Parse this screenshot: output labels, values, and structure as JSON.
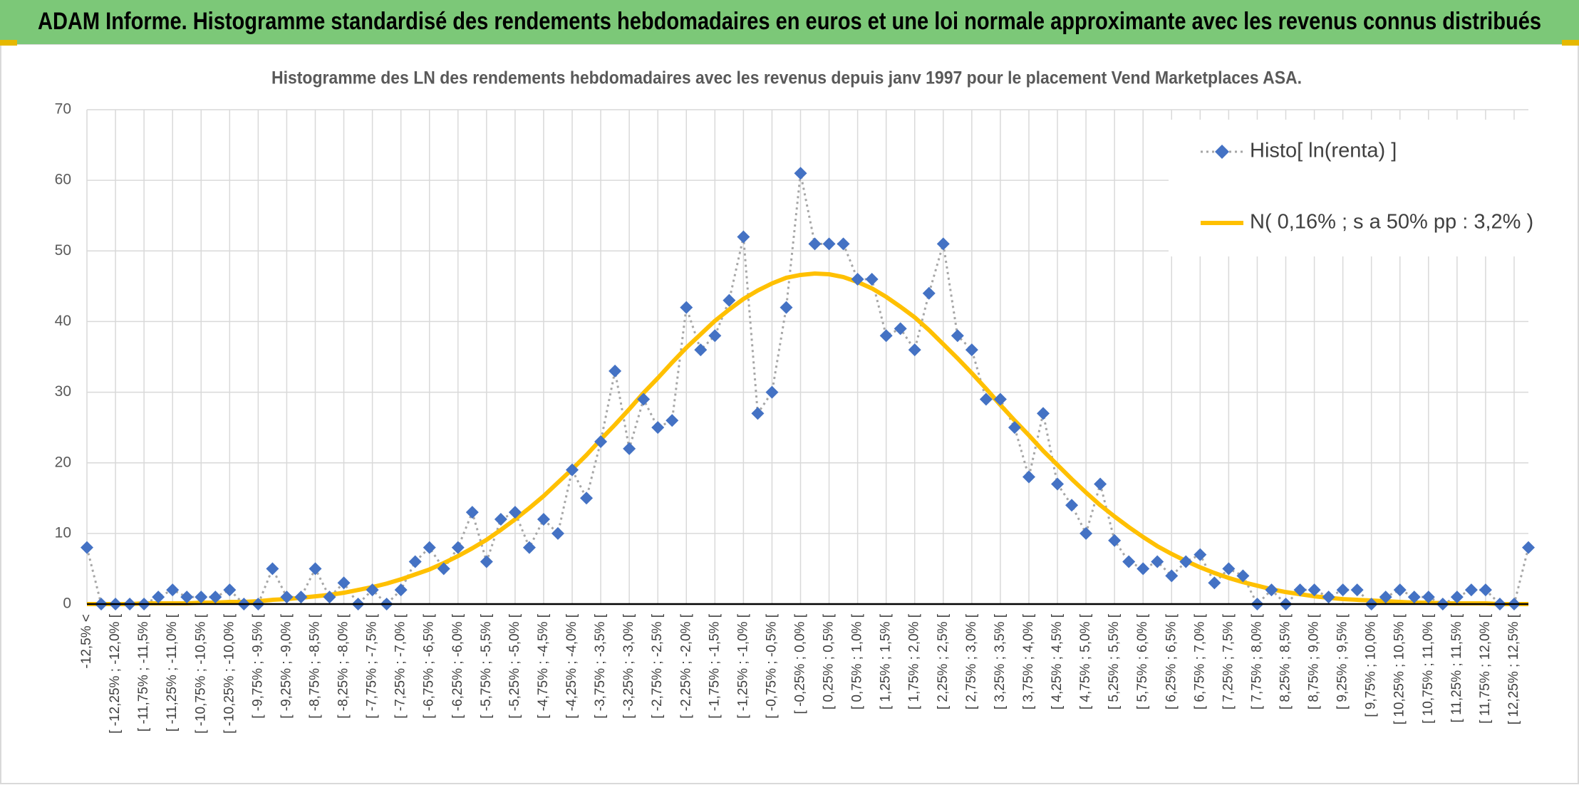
{
  "chart_data": {
    "type": "line",
    "title": "ADAM Informe. Histogramme standardisé des rendements hebdomadaires en euros et une loi normale approximante avec les revenus connus distribués",
    "subtitle": "Histogramme des LN des rendements hebdomadaires avec les revenus depuis janv 1997 pour le placement Vend Marketplaces ASA.",
    "categories": [
      "-12,5% <",
      null,
      "[ -12,25% ; -12,0% [",
      null,
      "[ -11,75% ; -11,5% [",
      null,
      "[ -11,25% ; -11,0% [",
      null,
      "[ -10,75% ; -10,5% [",
      null,
      "[ -10,25% ; -10,0% [",
      null,
      "[ -9,75% ; -9,5% [",
      null,
      "[ -9,25% ; -9,0% [",
      null,
      "[ -8,75% ; -8,5% [",
      null,
      "[ -8,25% ; -8,0% [",
      null,
      "[ -7,75% ; -7,5% [",
      null,
      "[ -7,25% ; -7,0% [",
      null,
      "[ -6,75% ; -6,5% [",
      null,
      "[ -6,25% ; -6,0% [",
      null,
      "[ -5,75% ; -5,5% [",
      null,
      "[ -5,25% ; -5,0% [",
      null,
      "[ -4,75% ; -4,5% [",
      null,
      "[ -4,25% ; -4,0% [",
      null,
      "[ -3,75% ; -3,5% [",
      null,
      "[ -3,25% ; -3,0% [",
      null,
      "[ -2,75% ; -2,5% [",
      null,
      "[ -2,25% ; -2,0% [",
      null,
      "[ -1,75% ; -1,5% [",
      null,
      "[ -1,25% ; -1,0% [",
      null,
      "[ -0,75% ; -0,5% [",
      null,
      "[ -0,25% ; 0,0% [",
      null,
      "[ 0,25% ; 0,5% [",
      null,
      "[ 0,75% ; 1,0% [",
      null,
      "[ 1,25% ; 1,5% [",
      null,
      "[ 1,75% ; 2,0% [",
      null,
      "[ 2,25% ; 2,5% [",
      null,
      "[ 2,75% ; 3,0% [",
      null,
      "[ 3,25% ; 3,5% [",
      null,
      "[ 3,75% ; 4,0% [",
      null,
      "[ 4,25% ; 4,5% [",
      null,
      "[ 4,75% ; 5,0% [",
      null,
      "[ 5,25% ; 5,5% [",
      null,
      "[ 5,75% ; 6,0% [",
      null,
      "[ 6,25% ; 6,5% [",
      null,
      "[ 6,75% ; 7,0% [",
      null,
      "[ 7,25% ; 7,5% [",
      null,
      "[ 7,75% ; 8,0% [",
      null,
      "[ 8,25% ; 8,5% [",
      null,
      "[ 8,75% ; 9,0% [",
      null,
      "[ 9,25% ; 9,5% [",
      null,
      "[ 9,75% ; 10,0% [",
      null,
      "[ 10,25% ; 10,5% [",
      null,
      "[ 10,75% ; 11,0% [",
      null,
      "[ 11,25% ; 11,5% [",
      null,
      "[ 11,75% ; 12,0% [",
      null,
      "[ 12,25% ; 12,5% [",
      null
    ],
    "series": [
      {
        "name": "Histo[ ln(renta) ]",
        "color": "#4472c4",
        "line_color": "#a6a6a6",
        "line_style": "dotted",
        "marker": "diamond",
        "values": [
          8,
          0,
          0,
          0,
          0,
          1,
          2,
          1,
          1,
          1,
          2,
          0,
          0,
          5,
          1,
          1,
          5,
          1,
          3,
          0,
          2,
          0,
          2,
          6,
          8,
          5,
          8,
          13,
          6,
          12,
          13,
          8,
          12,
          10,
          19,
          15,
          23,
          33,
          22,
          29,
          25,
          26,
          42,
          36,
          38,
          43,
          52,
          27,
          30,
          42,
          61,
          51,
          51,
          51,
          46,
          46,
          38,
          39,
          36,
          44,
          51,
          38,
          36,
          29,
          29,
          25,
          18,
          27,
          17,
          14,
          10,
          17,
          9,
          6,
          5,
          6,
          4,
          6,
          7,
          3,
          5,
          4,
          0,
          2,
          0,
          2,
          2,
          1,
          2,
          2,
          0,
          1,
          2,
          1,
          1,
          0,
          1,
          2,
          2,
          0,
          0,
          8
        ]
      },
      {
        "name": "N( 0,16% ; s a 50% pp : 3,2% )",
        "color": "#ffc000",
        "line_color": "#ffc000",
        "line_style": "solid",
        "marker": "none",
        "values": [
          0,
          0,
          0,
          0,
          0.1,
          0.1,
          0.1,
          0.1,
          0.2,
          0.2,
          0.3,
          0.3,
          0.4,
          0.6,
          0.7,
          0.9,
          1.1,
          1.3,
          1.6,
          2.0,
          2.4,
          2.9,
          3.5,
          4.2,
          4.9,
          5.8,
          6.8,
          7.9,
          9.1,
          10.5,
          12.0,
          13.6,
          15.3,
          17.2,
          19.1,
          21.1,
          23.3,
          25.4,
          27.6,
          29.9,
          32.0,
          34.2,
          36.3,
          38.2,
          40.1,
          41.7,
          43.2,
          44.4,
          45.4,
          46.2,
          46.6,
          46.8,
          46.7,
          46.3,
          45.6,
          44.7,
          43.5,
          42.1,
          40.6,
          38.8,
          36.8,
          34.8,
          32.7,
          30.5,
          28.2,
          26.0,
          23.9,
          21.7,
          19.7,
          17.7,
          15.8,
          14.0,
          12.4,
          10.9,
          9.5,
          8.2,
          7.1,
          6.1,
          5.2,
          4.4,
          3.7,
          3.1,
          2.6,
          2.1,
          1.7,
          1.4,
          1.1,
          0.9,
          0.7,
          0.6,
          0.5,
          0.4,
          0.3,
          0.2,
          0.2,
          0.1,
          0.1,
          0.1,
          0.1,
          0,
          0,
          0
        ]
      }
    ],
    "ylim": [
      0,
      70
    ],
    "yticks": [
      0,
      10,
      20,
      30,
      40,
      50,
      60,
      70
    ],
    "grid": true,
    "legend": "top-right"
  }
}
